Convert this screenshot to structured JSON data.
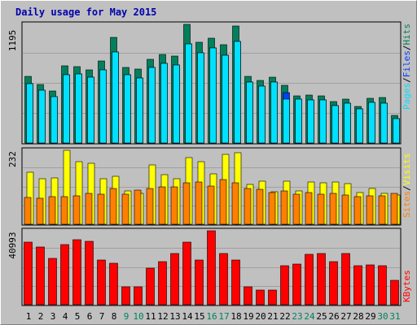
{
  "title": "Daily usage for May 2015",
  "colors": {
    "background": "#c0c0c0",
    "hits": "#00805c",
    "files": "#0040ff",
    "pages": "#00e0ff",
    "visits": "#ffff00",
    "sites": "#ff8000",
    "kbytes": "#ff0000",
    "title": "#0000b0",
    "weekend_day": "#00805c",
    "weekday": "#000000"
  },
  "legend": {
    "top": {
      "pages": "Pages",
      "files": "Files",
      "hits": "Hits",
      "sep": "/"
    },
    "middle": {
      "sites": "Sites",
      "visits": "Visits",
      "sep": "/"
    },
    "bottom": {
      "kbytes": "KBytes"
    }
  },
  "chart_data": [
    {
      "type": "bar",
      "panel": "top",
      "max_label": "1195",
      "ylim": [
        0,
        1195
      ],
      "categories": [
        "1",
        "2",
        "3",
        "4",
        "5",
        "6",
        "7",
        "8",
        "9",
        "10",
        "11",
        "12",
        "13",
        "14",
        "15",
        "16",
        "17",
        "18",
        "19",
        "20",
        "21",
        "22",
        "23",
        "24",
        "25",
        "26",
        "27",
        "28",
        "29",
        "30",
        "31"
      ],
      "weekend_days": [
        "9",
        "10",
        "16",
        "17",
        "23",
        "24",
        "30",
        "31"
      ],
      "series": [
        {
          "name": "Hits",
          "values": [
            668,
            593,
            523,
            779,
            770,
            733,
            826,
            1061,
            765,
            741,
            845,
            891,
            873,
            1195,
            1015,
            1058,
            991,
            1180,
            670,
            628,
            660,
            580,
            478,
            487,
            476,
            416,
            440,
            368,
            454,
            455,
            275
          ]
        },
        {
          "name": "Files",
          "values": [
            595,
            531,
            469,
            688,
            692,
            663,
            736,
            920,
            685,
            655,
            760,
            805,
            788,
            1000,
            905,
            955,
            885,
            1025,
            615,
            570,
            610,
            510,
            440,
            430,
            430,
            375,
            405,
            340,
            410,
            405,
            245
          ]
        },
        {
          "name": "Pages",
          "values": [
            595,
            531,
            469,
            688,
            692,
            663,
            736,
            920,
            685,
            655,
            760,
            805,
            788,
            1000,
            905,
            955,
            885,
            1025,
            615,
            570,
            610,
            440,
            440,
            430,
            430,
            375,
            405,
            340,
            410,
            405,
            245
          ]
        }
      ]
    },
    {
      "type": "bar",
      "panel": "middle",
      "max_label": "232",
      "ylim": [
        0,
        232
      ],
      "categories": [
        "1",
        "2",
        "3",
        "4",
        "5",
        "6",
        "7",
        "8",
        "9",
        "10",
        "11",
        "12",
        "13",
        "14",
        "15",
        "16",
        "17",
        "18",
        "19",
        "20",
        "21",
        "22",
        "23",
        "24",
        "25",
        "26",
        "27",
        "28",
        "29",
        "30",
        "31"
      ],
      "series": [
        {
          "name": "Visits",
          "values": [
            164,
            143,
            145,
            232,
            196,
            190,
            142,
            151,
            104,
            97,
            186,
            156,
            142,
            210,
            197,
            159,
            219,
            225,
            124,
            136,
            103,
            136,
            105,
            133,
            131,
            132,
            128,
            99,
            111,
            97,
            93
          ]
        },
        {
          "name": "Sites",
          "values": [
            84,
            82,
            86,
            87,
            89,
            98,
            94,
            111,
            95,
            107,
            113,
            117,
            117,
            131,
            132,
            121,
            141,
            129,
            111,
            109,
            99,
            104,
            94,
            100,
            95,
            96,
            92,
            86,
            89,
            89,
            96
          ]
        }
      ]
    },
    {
      "type": "bar",
      "panel": "bottom",
      "max_label": "40993",
      "ylim": [
        0,
        40993
      ],
      "categories": [
        "1",
        "2",
        "3",
        "4",
        "5",
        "6",
        "7",
        "8",
        "9",
        "10",
        "11",
        "12",
        "13",
        "14",
        "15",
        "16",
        "17",
        "18",
        "19",
        "20",
        "21",
        "22",
        "23",
        "24",
        "25",
        "26",
        "27",
        "28",
        "29",
        "30",
        "31"
      ],
      "series": [
        {
          "name": "KBytes",
          "values": [
            34800,
            31800,
            25900,
            33400,
            36000,
            35300,
            24600,
            22800,
            9900,
            9900,
            20100,
            24100,
            28600,
            34500,
            25000,
            40993,
            28600,
            25000,
            9700,
            8200,
            8200,
            21400,
            22600,
            28000,
            28600,
            24100,
            28600,
            21700,
            22000,
            21400,
            13500
          ]
        }
      ]
    }
  ]
}
